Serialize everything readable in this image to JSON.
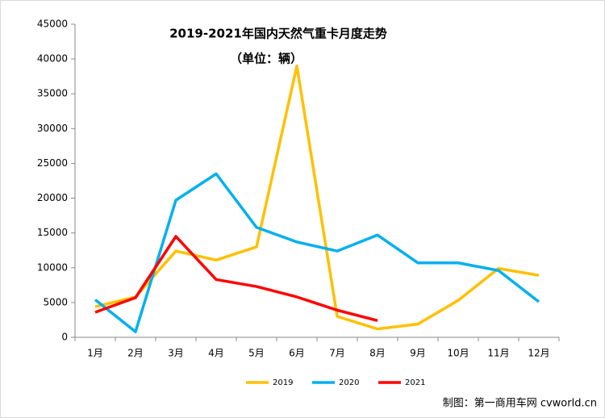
{
  "chart_data": {
    "type": "line",
    "title": "2019-2021年国内天然气重卡月度走势",
    "subtitle": "（单位：辆）",
    "categories": [
      "1月",
      "2月",
      "3月",
      "4月",
      "5月",
      "6月",
      "7月",
      "8月",
      "9月",
      "10月",
      "11月",
      "12月"
    ],
    "series": [
      {
        "name": "2019",
        "color": "#ffc000",
        "values": [
          4400,
          5800,
          12400,
          11100,
          13000,
          39000,
          3000,
          1200,
          1900,
          5300,
          9900,
          8900
        ]
      },
      {
        "name": "2020",
        "color": "#00b0f0",
        "values": [
          5400,
          800,
          19700,
          23500,
          15800,
          13700,
          12400,
          14700,
          10700,
          10700,
          9600,
          5100
        ]
      },
      {
        "name": "2021",
        "color": "#ff0000",
        "values": [
          3600,
          5700,
          14500,
          8300,
          7300,
          5800,
          3900,
          2400,
          null,
          null,
          null,
          null
        ]
      }
    ],
    "ylim": [
      0,
      45000
    ],
    "yticks": [
      0,
      5000,
      10000,
      15000,
      20000,
      25000,
      30000,
      35000,
      40000,
      45000
    ],
    "grid": false,
    "legend": "bottom",
    "source": "制图：第一商用车网 cvworld.cn"
  }
}
